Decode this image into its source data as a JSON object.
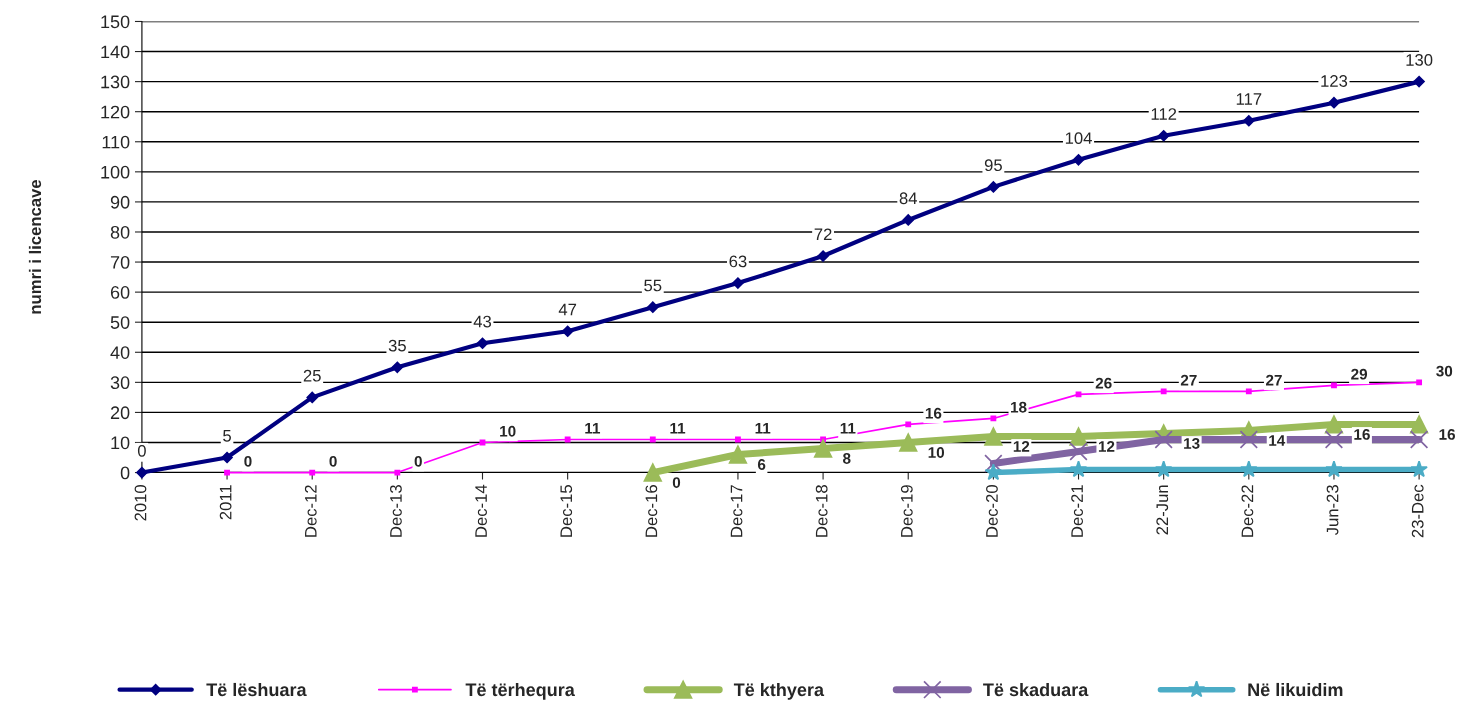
{
  "chart_data": {
    "type": "line",
    "ylabel": "numri i licencave",
    "categories": [
      "2010",
      "2011",
      "Dec-12",
      "Dec-13",
      "Dec-14",
      "Dec-15",
      "Dec-16",
      "Dec-17",
      "Dec-18",
      "Dec-19",
      "Dec-20",
      "Dec-21",
      "22-Jun",
      "Dec-22",
      "Jun-23",
      "23-Dec"
    ],
    "ylim": [
      0,
      150
    ],
    "yticks": [
      0,
      10,
      20,
      30,
      40,
      50,
      60,
      70,
      80,
      90,
      100,
      110,
      120,
      130,
      140,
      150
    ],
    "grid": "y",
    "legend": "bottom",
    "series": [
      {
        "name": "Të lëshuara",
        "color": "#000080",
        "marker": "diamond",
        "values": [
          0,
          5,
          25,
          35,
          43,
          47,
          55,
          63,
          72,
          84,
          95,
          104,
          112,
          117,
          123,
          130
        ],
        "value_labels": [
          "0",
          "5",
          "25",
          "35",
          "43",
          "47",
          "55",
          "63",
          "72",
          "84",
          "95",
          "104",
          "112",
          "117",
          "123",
          "130"
        ]
      },
      {
        "name": "Të tërhequra",
        "color": "#ff00ff",
        "marker": "square",
        "values": [
          null,
          0,
          0,
          0,
          10,
          11,
          11,
          11,
          11,
          16,
          18,
          26,
          27,
          27,
          29,
          30
        ],
        "value_labels": [
          null,
          "0",
          "0",
          "0",
          "10",
          "11",
          "11",
          "11",
          "11",
          "16",
          "18",
          "26",
          "27",
          "27",
          "29",
          "30"
        ]
      },
      {
        "name": "Të kthyera",
        "color": "#9bbb59",
        "marker": "triangle",
        "values": [
          null,
          null,
          null,
          null,
          null,
          null,
          0,
          6,
          8,
          10,
          12,
          12,
          13,
          14,
          16,
          16
        ],
        "value_labels": [
          null,
          null,
          null,
          null,
          null,
          null,
          "0",
          "6",
          "8",
          "10",
          "12",
          "12",
          "13",
          "14",
          "16",
          "16"
        ]
      },
      {
        "name": "Të skaduara",
        "color": "#8064a2",
        "marker": "cross",
        "values": [
          null,
          null,
          null,
          null,
          null,
          null,
          null,
          null,
          null,
          null,
          3,
          7,
          11,
          11,
          11,
          11
        ]
      },
      {
        "name": "Në likuidim",
        "color": "#4bacc6",
        "marker": "star",
        "values": [
          null,
          null,
          null,
          null,
          null,
          null,
          null,
          null,
          null,
          null,
          0,
          1,
          1,
          1,
          1,
          1
        ]
      }
    ]
  }
}
